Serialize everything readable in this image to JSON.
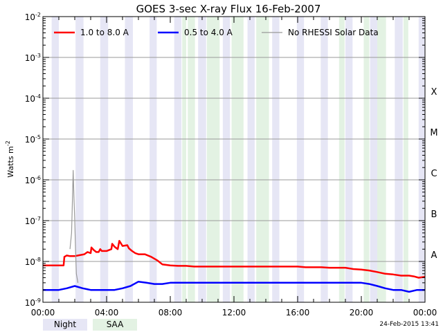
{
  "chart_data": {
    "type": "line",
    "title": "GOES 3-sec X-ray Flux   16-Feb-2007",
    "ylabel": "Watts m",
    "ylabel_sup": "-2",
    "yscale": "log",
    "ylim": [
      1e-09,
      0.01
    ],
    "xlim": [
      0,
      24
    ],
    "x_ticks": [
      {
        "x": 0,
        "label": "00:00"
      },
      {
        "x": 4,
        "label": "04:00"
      },
      {
        "x": 8,
        "label": "08:00"
      },
      {
        "x": 12,
        "label": "12:00"
      },
      {
        "x": 16,
        "label": "16:00"
      },
      {
        "x": 20,
        "label": "20:00"
      },
      {
        "x": 24,
        "label": "00:00"
      }
    ],
    "y_ticks": [
      {
        "exp": -9,
        "base": "10",
        "sup": "-9"
      },
      {
        "exp": -8,
        "base": "10",
        "sup": "-8"
      },
      {
        "exp": -7,
        "base": "10",
        "sup": "-7"
      },
      {
        "exp": -6,
        "base": "10",
        "sup": "-6"
      },
      {
        "exp": -5,
        "base": "10",
        "sup": "-5"
      },
      {
        "exp": -4,
        "base": "10",
        "sup": "-4"
      },
      {
        "exp": -3,
        "base": "10",
        "sup": "-3"
      },
      {
        "exp": -2,
        "base": "10",
        "sup": "-2"
      }
    ],
    "flare_classes": [
      {
        "label": "A",
        "value": 1e-08
      },
      {
        "label": "B",
        "value": 1e-07
      },
      {
        "label": "C",
        "value": 1e-06
      },
      {
        "label": "M",
        "value": 1e-05
      },
      {
        "label": "X",
        "value": 0.0001
      }
    ],
    "legend": [
      {
        "label": "1.0 to 8.0 A",
        "color": "#ff0000"
      },
      {
        "label": "0.5 to 4.0 A",
        "color": "#0000ff"
      },
      {
        "label": "No RHESSI Solar Data",
        "color": "#999999"
      }
    ],
    "night_intervals": [
      [
        0.55,
        1.0
      ],
      [
        2.05,
        2.55
      ],
      [
        3.6,
        4.1
      ],
      [
        5.15,
        5.65
      ],
      [
        6.7,
        7.15
      ],
      [
        8.25,
        8.7
      ],
      [
        9.75,
        10.25
      ],
      [
        11.3,
        11.75
      ],
      [
        12.85,
        13.3
      ],
      [
        14.4,
        14.85
      ],
      [
        15.95,
        16.4
      ],
      [
        17.45,
        17.9
      ],
      [
        19.0,
        19.45
      ],
      [
        20.55,
        21.0
      ],
      [
        22.1,
        22.6
      ],
      [
        23.6,
        24.0
      ]
    ],
    "saa_intervals": [
      [
        8.75,
        9.0
      ],
      [
        9.1,
        9.55
      ],
      [
        10.3,
        11.1
      ],
      [
        11.85,
        12.6
      ],
      [
        13.4,
        14.2
      ],
      [
        18.6,
        18.95
      ],
      [
        20.15,
        20.5
      ],
      [
        21.0,
        21.55
      ],
      [
        22.65,
        22.95
      ]
    ],
    "series": [
      {
        "name": "1.0 to 8.0 A",
        "color": "#ff0000",
        "x": [
          0.0,
          0.5,
          1.0,
          1.3,
          1.35,
          1.5,
          1.7,
          2.0,
          2.2,
          2.6,
          2.8,
          3.0,
          3.05,
          3.2,
          3.35,
          3.5,
          3.6,
          3.7,
          4.0,
          4.3,
          4.35,
          4.5,
          4.7,
          4.8,
          5.0,
          5.3,
          5.4,
          5.6,
          5.8,
          6.0,
          6.4,
          6.6,
          6.8,
          7.2,
          7.5,
          8.0,
          8.5,
          9.0,
          9.5,
          10.0,
          10.5,
          11.0,
          11.5,
          12.0,
          12.5,
          13.0,
          13.5,
          14.0,
          14.5,
          15.0,
          15.5,
          16.0,
          16.5,
          17.0,
          17.5,
          18.0,
          18.5,
          19.0,
          19.5,
          20.0,
          20.5,
          21.0,
          21.5,
          22.0,
          22.5,
          23.0,
          23.3,
          23.6,
          24.0
        ],
        "y": [
          8e-09,
          8e-09,
          8e-09,
          8e-09,
          1.3e-08,
          1.4e-08,
          1.35e-08,
          1.35e-08,
          1.4e-08,
          1.5e-08,
          1.7e-08,
          1.6e-08,
          2.2e-08,
          1.9e-08,
          1.7e-08,
          1.7e-08,
          2e-08,
          1.8e-08,
          1.8e-08,
          2e-08,
          2.7e-08,
          2.3e-08,
          2e-08,
          3.2e-08,
          2.4e-08,
          2.5e-08,
          2.1e-08,
          1.8e-08,
          1.6e-08,
          1.5e-08,
          1.5e-08,
          1.4e-08,
          1.3e-08,
          1.05e-08,
          8.5e-09,
          8e-09,
          7.8e-09,
          7.8e-09,
          7.5e-09,
          7.5e-09,
          7.5e-09,
          7.5e-09,
          7.5e-09,
          7.5e-09,
          7.5e-09,
          7.5e-09,
          7.5e-09,
          7.5e-09,
          7.5e-09,
          7.5e-09,
          7.5e-09,
          7.5e-09,
          7.2e-09,
          7.2e-09,
          7.2e-09,
          7e-09,
          7e-09,
          7e-09,
          6.5e-09,
          6.3e-09,
          6e-09,
          5.5e-09,
          5e-09,
          4.8e-09,
          4.5e-09,
          4.5e-09,
          4.3e-09,
          4e-09,
          4.2e-09
        ]
      },
      {
        "name": "0.5 to 4.0 A",
        "color": "#0000ff",
        "x": [
          0.0,
          0.5,
          1.0,
          1.5,
          2.0,
          2.5,
          3.0,
          3.5,
          4.0,
          4.5,
          5.0,
          5.5,
          6.0,
          6.5,
          7.0,
          7.5,
          8.0,
          8.5,
          9.0,
          9.5,
          10.0,
          10.5,
          11.0,
          11.5,
          12.0,
          12.5,
          13.0,
          13.5,
          14.0,
          14.5,
          15.0,
          15.5,
          16.0,
          16.5,
          17.0,
          17.5,
          18.0,
          18.5,
          19.0,
          19.5,
          20.0,
          20.5,
          21.0,
          21.5,
          22.0,
          22.5,
          23.0,
          23.5,
          24.0
        ],
        "y": [
          2e-09,
          2e-09,
          2e-09,
          2.2e-09,
          2.5e-09,
          2.2e-09,
          2e-09,
          2e-09,
          2e-09,
          2e-09,
          2.2e-09,
          2.5e-09,
          3.2e-09,
          3e-09,
          2.8e-09,
          2.8e-09,
          3e-09,
          3e-09,
          3e-09,
          3e-09,
          3e-09,
          3e-09,
          3e-09,
          3e-09,
          3e-09,
          3e-09,
          3e-09,
          3e-09,
          3e-09,
          3e-09,
          3e-09,
          3e-09,
          3e-09,
          3e-09,
          3e-09,
          3e-09,
          3e-09,
          3e-09,
          3e-09,
          3e-09,
          3e-09,
          2.8e-09,
          2.5e-09,
          2.2e-09,
          2e-09,
          2e-09,
          1.8e-09,
          2e-09,
          2e-09
        ]
      },
      {
        "name": "No RHESSI Solar Data",
        "color": "#999999",
        "x": [
          1.7,
          1.8,
          1.85,
          1.9,
          1.95,
          2.0,
          2.05,
          2.1,
          2.2
        ],
        "y": [
          2e-08,
          5e-08,
          3e-07,
          1.7e-06,
          4e-07,
          1e-07,
          2e-08,
          5e-09,
          3e-09
        ]
      }
    ]
  },
  "footer": {
    "night_label": "Night",
    "night_color": "#e6e6f5",
    "saa_label": "SAA",
    "saa_color": "#e3f2e3",
    "timestamp": "24-Feb-2015 13:41"
  }
}
